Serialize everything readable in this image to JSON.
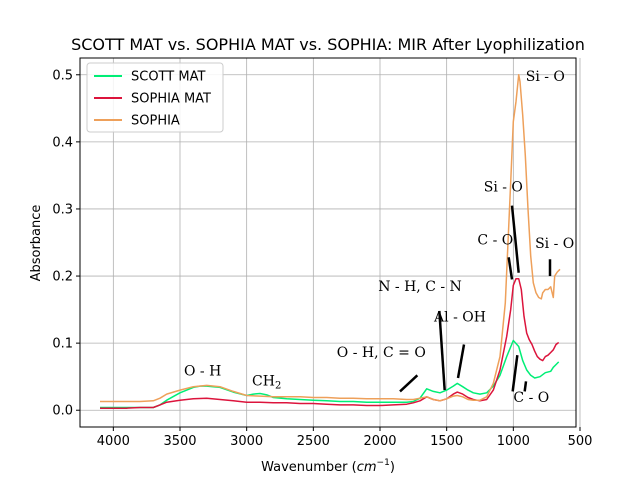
{
  "chart_data": {
    "type": "line",
    "title": "SCOTT MAT vs. SOPHIA MAT vs. SOPHIA: MIR After Lyophilization",
    "xlabel_main": "Wavenumber (",
    "xlabel_unit": "cm",
    "xlabel_exp": "−1",
    "xlabel_close": ")",
    "ylabel": "Absorbance",
    "xlim": [
      4250,
      530
    ],
    "ylim": [
      -0.025,
      0.525
    ],
    "x_reversed": true,
    "grid": true,
    "legend_position": "upper-left",
    "xticks": [
      4000,
      3500,
      3000,
      2500,
      2000,
      1500,
      1000,
      500
    ],
    "xtick_labels": [
      "4000",
      "3500",
      "3000",
      "2500",
      "2000",
      "1500",
      "1000",
      "500"
    ],
    "yticks": [
      0.0,
      0.1,
      0.2,
      0.3,
      0.4,
      0.5
    ],
    "ytick_labels": [
      "0.0",
      "0.1",
      "0.2",
      "0.3",
      "0.4",
      "0.5"
    ],
    "series": [
      {
        "name": "SCOTT MAT",
        "color": "#00ee76",
        "points": [
          [
            4100,
            0.004
          ],
          [
            4000,
            0.004
          ],
          [
            3900,
            0.004
          ],
          [
            3800,
            0.004
          ],
          [
            3700,
            0.004
          ],
          [
            3650,
            0.008
          ],
          [
            3600,
            0.015
          ],
          [
            3500,
            0.026
          ],
          [
            3400,
            0.034
          ],
          [
            3350,
            0.036
          ],
          [
            3300,
            0.036
          ],
          [
            3200,
            0.034
          ],
          [
            3100,
            0.027
          ],
          [
            3000,
            0.022
          ],
          [
            2950,
            0.024
          ],
          [
            2900,
            0.025
          ],
          [
            2850,
            0.023
          ],
          [
            2800,
            0.019
          ],
          [
            2700,
            0.017
          ],
          [
            2600,
            0.016
          ],
          [
            2500,
            0.015
          ],
          [
            2400,
            0.014
          ],
          [
            2300,
            0.013
          ],
          [
            2200,
            0.013
          ],
          [
            2100,
            0.012
          ],
          [
            2000,
            0.012
          ],
          [
            1900,
            0.012
          ],
          [
            1800,
            0.012
          ],
          [
            1750,
            0.013
          ],
          [
            1700,
            0.018
          ],
          [
            1650,
            0.032
          ],
          [
            1600,
            0.028
          ],
          [
            1550,
            0.026
          ],
          [
            1500,
            0.03
          ],
          [
            1450,
            0.036
          ],
          [
            1420,
            0.04
          ],
          [
            1380,
            0.035
          ],
          [
            1340,
            0.03
          ],
          [
            1300,
            0.026
          ],
          [
            1250,
            0.024
          ],
          [
            1200,
            0.026
          ],
          [
            1150,
            0.036
          ],
          [
            1100,
            0.052
          ],
          [
            1050,
            0.08
          ],
          [
            1000,
            0.104
          ],
          [
            960,
            0.095
          ],
          [
            930,
            0.074
          ],
          [
            900,
            0.06
          ],
          [
            870,
            0.052
          ],
          [
            840,
            0.048
          ],
          [
            800,
            0.05
          ],
          [
            760,
            0.056
          ],
          [
            720,
            0.058
          ],
          [
            700,
            0.064
          ],
          [
            680,
            0.068
          ],
          [
            660,
            0.072
          ]
        ]
      },
      {
        "name": "SOPHIA MAT",
        "color": "#dc143c",
        "points": [
          [
            4100,
            0.003
          ],
          [
            4000,
            0.003
          ],
          [
            3900,
            0.003
          ],
          [
            3800,
            0.004
          ],
          [
            3700,
            0.004
          ],
          [
            3650,
            0.008
          ],
          [
            3600,
            0.012
          ],
          [
            3500,
            0.015
          ],
          [
            3400,
            0.017
          ],
          [
            3300,
            0.018
          ],
          [
            3200,
            0.016
          ],
          [
            3100,
            0.014
          ],
          [
            3000,
            0.012
          ],
          [
            2900,
            0.012
          ],
          [
            2800,
            0.011
          ],
          [
            2700,
            0.011
          ],
          [
            2600,
            0.01
          ],
          [
            2500,
            0.01
          ],
          [
            2400,
            0.009
          ],
          [
            2300,
            0.008
          ],
          [
            2200,
            0.008
          ],
          [
            2100,
            0.007
          ],
          [
            2000,
            0.007
          ],
          [
            1900,
            0.008
          ],
          [
            1800,
            0.009
          ],
          [
            1750,
            0.011
          ],
          [
            1700,
            0.014
          ],
          [
            1650,
            0.02
          ],
          [
            1600,
            0.016
          ],
          [
            1550,
            0.014
          ],
          [
            1500,
            0.017
          ],
          [
            1450,
            0.024
          ],
          [
            1420,
            0.027
          ],
          [
            1380,
            0.024
          ],
          [
            1340,
            0.019
          ],
          [
            1300,
            0.016
          ],
          [
            1250,
            0.014
          ],
          [
            1200,
            0.016
          ],
          [
            1150,
            0.03
          ],
          [
            1100,
            0.06
          ],
          [
            1050,
            0.11
          ],
          [
            1020,
            0.15
          ],
          [
            1000,
            0.186
          ],
          [
            980,
            0.196
          ],
          [
            960,
            0.196
          ],
          [
            940,
            0.18
          ],
          [
            920,
            0.14
          ],
          [
            900,
            0.115
          ],
          [
            880,
            0.105
          ],
          [
            860,
            0.098
          ],
          [
            840,
            0.088
          ],
          [
            820,
            0.08
          ],
          [
            800,
            0.076
          ],
          [
            780,
            0.074
          ],
          [
            760,
            0.08
          ],
          [
            740,
            0.082
          ],
          [
            720,
            0.086
          ],
          [
            700,
            0.09
          ],
          [
            680,
            0.098
          ],
          [
            660,
            0.101
          ]
        ]
      },
      {
        "name": "SOPHIA",
        "color": "#eea05a",
        "points": [
          [
            4100,
            0.013
          ],
          [
            4000,
            0.013
          ],
          [
            3900,
            0.013
          ],
          [
            3800,
            0.013
          ],
          [
            3700,
            0.014
          ],
          [
            3650,
            0.018
          ],
          [
            3600,
            0.024
          ],
          [
            3500,
            0.03
          ],
          [
            3400,
            0.035
          ],
          [
            3300,
            0.037
          ],
          [
            3200,
            0.035
          ],
          [
            3100,
            0.028
          ],
          [
            3000,
            0.022
          ],
          [
            2900,
            0.021
          ],
          [
            2800,
            0.02
          ],
          [
            2700,
            0.02
          ],
          [
            2600,
            0.02
          ],
          [
            2500,
            0.019
          ],
          [
            2400,
            0.019
          ],
          [
            2300,
            0.018
          ],
          [
            2200,
            0.018
          ],
          [
            2100,
            0.017
          ],
          [
            2000,
            0.017
          ],
          [
            1900,
            0.017
          ],
          [
            1800,
            0.016
          ],
          [
            1750,
            0.016
          ],
          [
            1700,
            0.018
          ],
          [
            1650,
            0.02
          ],
          [
            1600,
            0.016
          ],
          [
            1550,
            0.014
          ],
          [
            1500,
            0.017
          ],
          [
            1450,
            0.021
          ],
          [
            1420,
            0.022
          ],
          [
            1380,
            0.02
          ],
          [
            1340,
            0.016
          ],
          [
            1300,
            0.015
          ],
          [
            1250,
            0.015
          ],
          [
            1200,
            0.02
          ],
          [
            1150,
            0.04
          ],
          [
            1100,
            0.08
          ],
          [
            1060,
            0.16
          ],
          [
            1040,
            0.25
          ],
          [
            1020,
            0.34
          ],
          [
            1000,
            0.43
          ],
          [
            980,
            0.46
          ],
          [
            960,
            0.5
          ],
          [
            950,
            0.49
          ],
          [
            930,
            0.44
          ],
          [
            910,
            0.38
          ],
          [
            890,
            0.3
          ],
          [
            870,
            0.23
          ],
          [
            850,
            0.19
          ],
          [
            830,
            0.175
          ],
          [
            810,
            0.168
          ],
          [
            790,
            0.166
          ],
          [
            780,
            0.175
          ],
          [
            760,
            0.18
          ],
          [
            740,
            0.18
          ],
          [
            720,
            0.184
          ],
          [
            700,
            0.168
          ],
          [
            690,
            0.2
          ],
          [
            670,
            0.206
          ],
          [
            650,
            0.21
          ]
        ]
      }
    ],
    "annotations": [
      {
        "text": "O - H",
        "x": 3330,
        "y": 0.052
      },
      {
        "text": "CH",
        "sub": "2",
        "x": 2850,
        "y": 0.037
      },
      {
        "text": "O - H, C = O",
        "x": 1990,
        "y": 0.079
      },
      {
        "text": "N - H, C - N",
        "x": 1700,
        "y": 0.178
      },
      {
        "text": "Al - OH",
        "x": 1400,
        "y": 0.132
      },
      {
        "text": "C - O",
        "x": 1135,
        "y": 0.247
      },
      {
        "text": "Si - O",
        "x": 1075,
        "y": 0.326
      },
      {
        "text": "Si - O",
        "x": 760,
        "y": 0.491
      },
      {
        "text": "Si - O",
        "x": 690,
        "y": 0.242
      },
      {
        "text": "C - O",
        "x": 865,
        "y": 0.012
      }
    ],
    "annotation_lines": [
      [
        [
          1720,
          0.052
        ],
        [
          1850,
          0.028
        ]
      ],
      [
        [
          1555,
          0.148
        ],
        [
          1515,
          0.03
        ]
      ],
      [
        [
          1370,
          0.098
        ],
        [
          1415,
          0.048
        ]
      ],
      [
        [
          1035,
          0.228
        ],
        [
          1010,
          0.195
        ]
      ],
      [
        [
          1010,
          0.305
        ],
        [
          960,
          0.205
        ]
      ],
      [
        [
          725,
          0.225
        ],
        [
          725,
          0.2
        ]
      ],
      [
        [
          1005,
          0.028
        ],
        [
          970,
          0.082
        ]
      ],
      [
        [
          915,
          0.028
        ],
        [
          905,
          0.043
        ]
      ]
    ]
  }
}
